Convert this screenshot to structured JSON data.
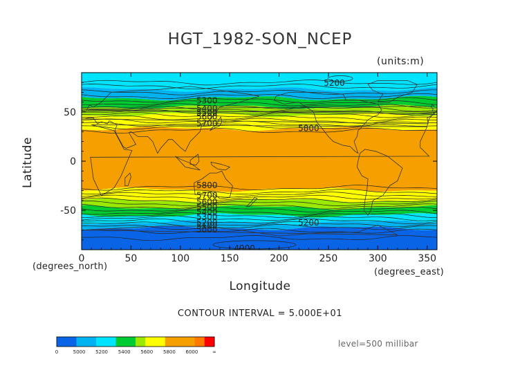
{
  "chart_data": {
    "type": "heatmap",
    "title": "HGT_1982-SON_NCEP",
    "units": "(units:m)",
    "xlabel": "Longitude",
    "ylabel": "Latitude",
    "x_unit": "(degrees_east)",
    "y_unit": "(degrees_north)",
    "xlim": [
      0,
      360
    ],
    "ylim": [
      -90,
      90
    ],
    "x_ticks": [
      0,
      50,
      100,
      150,
      200,
      250,
      300,
      350
    ],
    "y_ticks": [
      50,
      0,
      -50
    ],
    "contour_interval_text": "CONTOUR INTERVAL = 5.000E+01",
    "level_text": "level=500 millibar",
    "zonal_bands": [
      {
        "lat_max": 90,
        "lat_min": 73,
        "color": "#00e4ff"
      },
      {
        "lat_max": 73,
        "lat_min": 64,
        "color": "#00b3f0"
      },
      {
        "lat_max": 64,
        "lat_min": 55,
        "color": "#00cc32"
      },
      {
        "lat_max": 55,
        "lat_min": 47,
        "color": "#9be800"
      },
      {
        "lat_max": 47,
        "lat_min": 33,
        "color": "#ffff00"
      },
      {
        "lat_max": 33,
        "lat_min": -29,
        "color": "#f5a000"
      },
      {
        "lat_max": -29,
        "lat_min": -40,
        "color": "#ffff00"
      },
      {
        "lat_max": -40,
        "lat_min": -47,
        "color": "#9be800"
      },
      {
        "lat_max": -47,
        "lat_min": -55,
        "color": "#00cc32"
      },
      {
        "lat_max": -55,
        "lat_min": -62,
        "color": "#00e4ff"
      },
      {
        "lat_max": -62,
        "lat_min": -68,
        "color": "#00b3f0"
      },
      {
        "lat_max": -68,
        "lat_min": -90,
        "color": "#0a64e6"
      }
    ],
    "contour_labels": [
      {
        "text": "5300",
        "lon": 127,
        "lat": 61
      },
      {
        "text": "5400",
        "lon": 127,
        "lat": 53
      },
      {
        "text": "5500",
        "lon": 127,
        "lat": 49
      },
      {
        "text": "5600",
        "lon": 127,
        "lat": 45
      },
      {
        "text": "5700",
        "lon": 127,
        "lat": 38
      },
      {
        "text": "5800",
        "lon": 230,
        "lat": 33
      },
      {
        "text": "5200",
        "lon": 256,
        "lat": 79
      },
      {
        "text": "5800",
        "lon": 127,
        "lat": -25
      },
      {
        "text": "5700",
        "lon": 127,
        "lat": -35
      },
      {
        "text": "5600",
        "lon": 127,
        "lat": -42
      },
      {
        "text": "5500",
        "lon": 127,
        "lat": -47
      },
      {
        "text": "5400",
        "lon": 127,
        "lat": -52
      },
      {
        "text": "5300",
        "lon": 127,
        "lat": -57
      },
      {
        "text": "5200",
        "lon": 127,
        "lat": -63
      },
      {
        "text": "5100",
        "lon": 127,
        "lat": -66
      },
      {
        "text": "5000",
        "lon": 127,
        "lat": -70
      },
      {
        "text": "5200",
        "lon": 230,
        "lat": -63
      },
      {
        "text": "4900",
        "lon": 165,
        "lat": -89
      }
    ],
    "colorbar": {
      "colors": [
        "#0a64e6",
        "#0a64e6",
        "#00b3f0",
        "#00b3f0",
        "#00e4ff",
        "#00e4ff",
        "#00cc32",
        "#00cc32",
        "#9be800",
        "#ffff00",
        "#ffff00",
        "#f5a000",
        "#f5a000",
        "#f5a000",
        "#ff7a00",
        "#ff0000"
      ],
      "labels": [
        "0",
        "5000",
        "5200",
        "5400",
        "5600",
        "5800",
        "6000",
        "∞"
      ]
    }
  }
}
